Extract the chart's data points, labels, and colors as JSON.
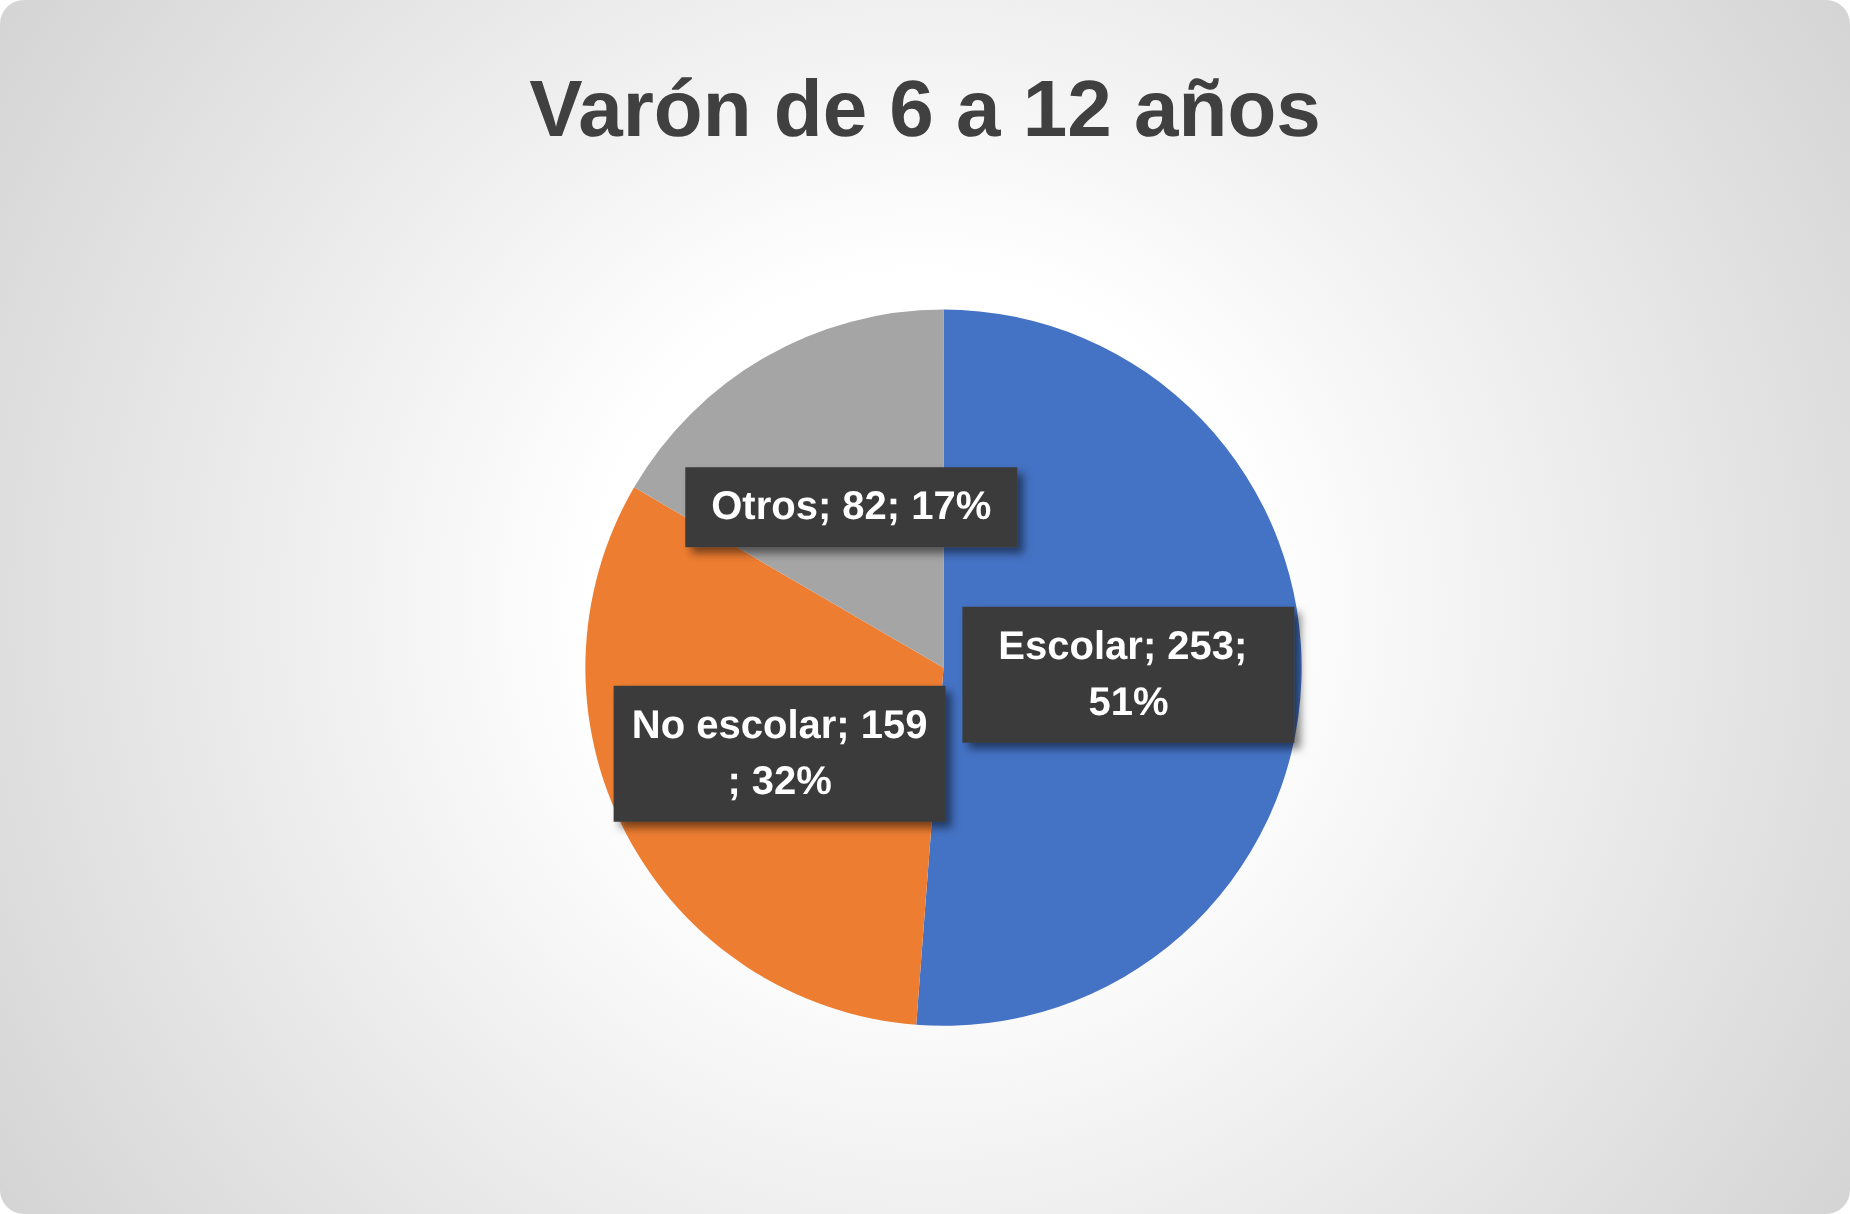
{
  "chart_data": {
    "type": "pie",
    "title": "Varón de 6 a 12 años",
    "categories": [
      "Escolar",
      "No escolar",
      "Otros"
    ],
    "values": [
      253,
      159,
      82
    ],
    "value_labels": [
      "253; 51%",
      "159; 32%",
      "82; 17%"
    ],
    "colors": [
      "#4472c4",
      "#ed7d31",
      "#a5a5a5"
    ],
    "legend": false
  }
}
